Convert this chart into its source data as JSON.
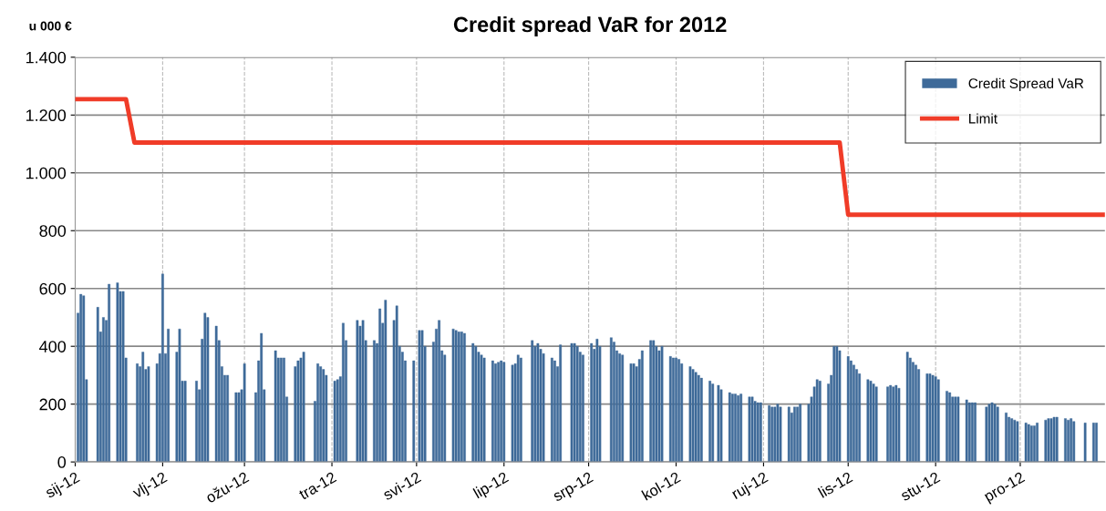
{
  "chart_data": {
    "type": "bar",
    "title": "Credit spread VaR for 2012",
    "ylabel": "u 000 €",
    "xlim": [
      "2012-01-01",
      "2012-12-31"
    ],
    "xticks": [
      {
        "value": "2012-01-01",
        "label": "sij-12"
      },
      {
        "value": "2012-02-01",
        "label": "vlj-12"
      },
      {
        "value": "2012-03-01",
        "label": "ožu-12"
      },
      {
        "value": "2012-04-01",
        "label": "tra-12"
      },
      {
        "value": "2012-05-01",
        "label": "svi-12"
      },
      {
        "value": "2012-06-01",
        "label": "lip-12"
      },
      {
        "value": "2012-07-01",
        "label": "srp-12"
      },
      {
        "value": "2012-08-01",
        "label": "kol-12"
      },
      {
        "value": "2012-09-01",
        "label": "ruj-12"
      },
      {
        "value": "2012-10-01",
        "label": "lis-12"
      },
      {
        "value": "2012-11-01",
        "label": "stu-12"
      },
      {
        "value": "2012-12-01",
        "label": "pro-12"
      }
    ],
    "ylim": [
      0,
      1400
    ],
    "yticks": [
      0,
      200,
      400,
      600,
      800,
      {
        "value": 1000,
        "label": "1.000"
      },
      {
        "value": 1200,
        "label": "1.200"
      },
      {
        "value": 1400,
        "label": "1.400"
      }
    ],
    "grid": true,
    "legend": "top right",
    "series": [
      {
        "name": "Credit Spread VaR",
        "color": "#3e6a99",
        "x": [
          "2012-01-02",
          "2012-01-03",
          "2012-01-04",
          "2012-01-05",
          "2012-01-09",
          "2012-01-10",
          "2012-01-11",
          "2012-01-12",
          "2012-01-13",
          "2012-01-16",
          "2012-01-17",
          "2012-01-18",
          "2012-01-19",
          "2012-01-23",
          "2012-01-24",
          "2012-01-25",
          "2012-01-26",
          "2012-01-27",
          "2012-01-30",
          "2012-01-31",
          "2012-02-01",
          "2012-02-02",
          "2012-02-03",
          "2012-02-06",
          "2012-02-07",
          "2012-02-08",
          "2012-02-09",
          "2012-02-13",
          "2012-02-14",
          "2012-02-15",
          "2012-02-16",
          "2012-02-17",
          "2012-02-20",
          "2012-02-21",
          "2012-02-22",
          "2012-02-23",
          "2012-02-24",
          "2012-02-27",
          "2012-02-28",
          "2012-02-29",
          "2012-03-01",
          "2012-03-05",
          "2012-03-06",
          "2012-03-07",
          "2012-03-08",
          "2012-03-12",
          "2012-03-13",
          "2012-03-14",
          "2012-03-15",
          "2012-03-16",
          "2012-03-19",
          "2012-03-20",
          "2012-03-21",
          "2012-03-22",
          "2012-03-26",
          "2012-03-27",
          "2012-03-28",
          "2012-03-29",
          "2012-03-30",
          "2012-04-02",
          "2012-04-03",
          "2012-04-04",
          "2012-04-05",
          "2012-04-06",
          "2012-04-10",
          "2012-04-11",
          "2012-04-12",
          "2012-04-13",
          "2012-04-16",
          "2012-04-17",
          "2012-04-18",
          "2012-04-19",
          "2012-04-20",
          "2012-04-23",
          "2012-04-24",
          "2012-04-25",
          "2012-04-26",
          "2012-04-27",
          "2012-04-30",
          "2012-05-02",
          "2012-05-03",
          "2012-05-04",
          "2012-05-07",
          "2012-05-08",
          "2012-05-09",
          "2012-05-10",
          "2012-05-11",
          "2012-05-14",
          "2012-05-15",
          "2012-05-16",
          "2012-05-17",
          "2012-05-18",
          "2012-05-21",
          "2012-05-22",
          "2012-05-23",
          "2012-05-24",
          "2012-05-25",
          "2012-05-28",
          "2012-05-29",
          "2012-05-30",
          "2012-05-31",
          "2012-06-01",
          "2012-06-04",
          "2012-06-05",
          "2012-06-06",
          "2012-06-07",
          "2012-06-11",
          "2012-06-12",
          "2012-06-13",
          "2012-06-14",
          "2012-06-15",
          "2012-06-18",
          "2012-06-19",
          "2012-06-20",
          "2012-06-21",
          "2012-06-25",
          "2012-06-26",
          "2012-06-27",
          "2012-06-28",
          "2012-06-29",
          "2012-07-02",
          "2012-07-03",
          "2012-07-04",
          "2012-07-05",
          "2012-07-09",
          "2012-07-10",
          "2012-07-11",
          "2012-07-12",
          "2012-07-13",
          "2012-07-16",
          "2012-07-17",
          "2012-07-18",
          "2012-07-19",
          "2012-07-20",
          "2012-07-23",
          "2012-07-24",
          "2012-07-25",
          "2012-07-26",
          "2012-07-27",
          "2012-07-30",
          "2012-07-31",
          "2012-08-01",
          "2012-08-02",
          "2012-08-03",
          "2012-08-06",
          "2012-08-07",
          "2012-08-08",
          "2012-08-09",
          "2012-08-10",
          "2012-08-13",
          "2012-08-14",
          "2012-08-16",
          "2012-08-17",
          "2012-08-20",
          "2012-08-21",
          "2012-08-22",
          "2012-08-23",
          "2012-08-24",
          "2012-08-27",
          "2012-08-28",
          "2012-08-29",
          "2012-08-30",
          "2012-08-31",
          "2012-09-03",
          "2012-09-04",
          "2012-09-05",
          "2012-09-06",
          "2012-09-07",
          "2012-09-10",
          "2012-09-11",
          "2012-09-12",
          "2012-09-13",
          "2012-09-14",
          "2012-09-17",
          "2012-09-18",
          "2012-09-19",
          "2012-09-20",
          "2012-09-21",
          "2012-09-24",
          "2012-09-25",
          "2012-09-26",
          "2012-09-27",
          "2012-09-28",
          "2012-10-01",
          "2012-10-02",
          "2012-10-03",
          "2012-10-04",
          "2012-10-05",
          "2012-10-08",
          "2012-10-09",
          "2012-10-10",
          "2012-10-11",
          "2012-10-15",
          "2012-10-16",
          "2012-10-17",
          "2012-10-18",
          "2012-10-19",
          "2012-10-22",
          "2012-10-23",
          "2012-10-24",
          "2012-10-25",
          "2012-10-26",
          "2012-10-29",
          "2012-10-30",
          "2012-10-31",
          "2012-11-01",
          "2012-11-02",
          "2012-11-05",
          "2012-11-06",
          "2012-11-07",
          "2012-11-08",
          "2012-11-09",
          "2012-11-12",
          "2012-11-13",
          "2012-11-14",
          "2012-11-15",
          "2012-11-19",
          "2012-11-20",
          "2012-11-21",
          "2012-11-22",
          "2012-11-23",
          "2012-11-26",
          "2012-11-27",
          "2012-11-28",
          "2012-11-29",
          "2012-11-30",
          "2012-12-03",
          "2012-12-04",
          "2012-12-05",
          "2012-12-06",
          "2012-12-07",
          "2012-12-10",
          "2012-12-11",
          "2012-12-12",
          "2012-12-13",
          "2012-12-14",
          "2012-12-17",
          "2012-12-18",
          "2012-12-19",
          "2012-12-20",
          "2012-12-24",
          "2012-12-27",
          "2012-12-28"
        ],
        "values": [
          515,
          580,
          575,
          285,
          535,
          450,
          500,
          490,
          615,
          620,
          590,
          590,
          360,
          340,
          330,
          380,
          320,
          330,
          340,
          375,
          650,
          375,
          460,
          380,
          460,
          280,
          280,
          280,
          250,
          425,
          515,
          500,
          470,
          420,
          330,
          300,
          300,
          240,
          240,
          250,
          340,
          240,
          350,
          445,
          250,
          385,
          360,
          360,
          360,
          225,
          330,
          350,
          360,
          380,
          210,
          340,
          330,
          320,
          300,
          280,
          285,
          295,
          480,
          420,
          490,
          470,
          490,
          420,
          420,
          410,
          530,
          480,
          560,
          490,
          540,
          400,
          380,
          350,
          350,
          455,
          455,
          400,
          415,
          460,
          490,
          385,
          370,
          460,
          455,
          450,
          450,
          445,
          410,
          400,
          380,
          370,
          360,
          350,
          340,
          345,
          350,
          345,
          335,
          340,
          370,
          360,
          420,
          400,
          410,
          390,
          375,
          360,
          350,
          330,
          405,
          410,
          410,
          400,
          380,
          370,
          410,
          390,
          425,
          400,
          430,
          415,
          385,
          375,
          370,
          340,
          340,
          330,
          355,
          385,
          420,
          420,
          400,
          385,
          400,
          365,
          360,
          360,
          355,
          340,
          330,
          320,
          310,
          300,
          290,
          280,
          270,
          265,
          250,
          240,
          235,
          235,
          230,
          235,
          225,
          225,
          210,
          205,
          205,
          195,
          190,
          190,
          200,
          190,
          190,
          170,
          190,
          190,
          200,
          200,
          225,
          260,
          285,
          280,
          270,
          300,
          400,
          400,
          385,
          365,
          350,
          335,
          320,
          305,
          285,
          280,
          270,
          260,
          260,
          265,
          260,
          265,
          255,
          380,
          360,
          345,
          335,
          320,
          305,
          305,
          300,
          295,
          285,
          245,
          240,
          225,
          225,
          225,
          215,
          205,
          205,
          205,
          190,
          200,
          205,
          200,
          190,
          170,
          155,
          150,
          145,
          140,
          135,
          130,
          125,
          125,
          135,
          145,
          150,
          150,
          155,
          155,
          150,
          145,
          150,
          140,
          135,
          135,
          135
        ]
      },
      {
        "name": "Limit",
        "type": "line",
        "color": "#f03c28",
        "line_style": "solid",
        "x": [
          "2012-01-01",
          "2012-01-19",
          "2012-01-22",
          "2012-09-28",
          "2012-10-01",
          "2012-12-31"
        ],
        "values": [
          1255,
          1255,
          1105,
          1105,
          855,
          855
        ]
      }
    ]
  }
}
